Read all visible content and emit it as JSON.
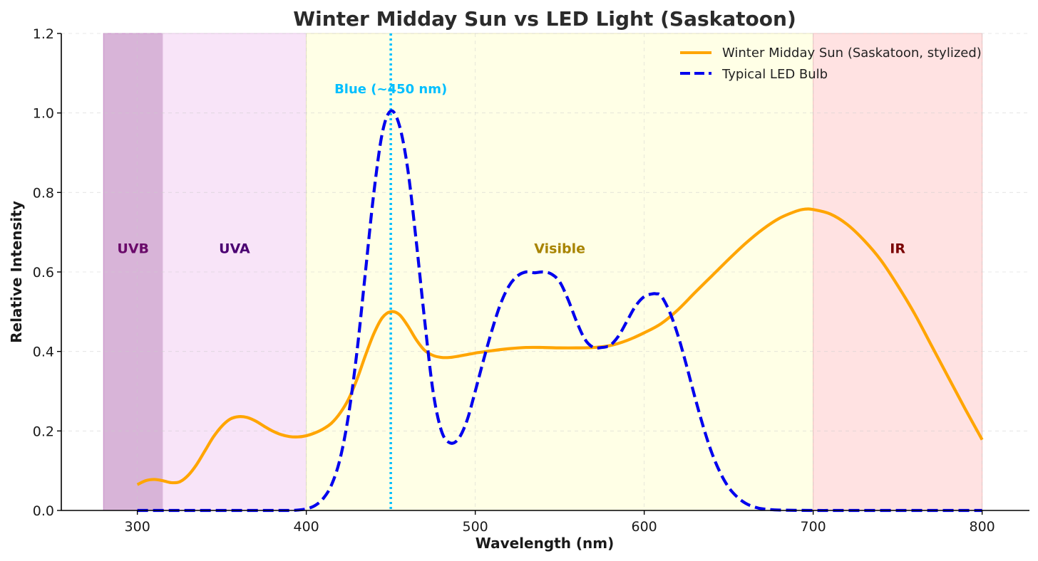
{
  "chart_data": {
    "type": "line",
    "title": "Winter Midday Sun vs LED Light (Saskatoon)",
    "xlabel": "Wavelength (nm)",
    "ylabel": "Relative Intensity",
    "xlim": [
      255,
      828
    ],
    "ylim": [
      0,
      1.2
    ],
    "xticks": [
      300,
      400,
      500,
      600,
      700,
      800
    ],
    "xtick_labels": [
      "300",
      "400",
      "500",
      "600",
      "700",
      "800"
    ],
    "yticks": [
      0,
      0.2,
      0.4,
      0.6,
      0.8,
      1.0,
      1.2
    ],
    "ytick_labels": [
      "0.0",
      "0.2",
      "0.4",
      "0.6",
      "0.8",
      "1.0",
      "1.2"
    ],
    "grid": true,
    "legend_position": "top-right",
    "series": [
      {
        "name": "Winter Midday Sun (Saskatoon, stylized)",
        "color": "#FFA500",
        "style": "solid",
        "x": [
          300,
          305,
          310,
          315,
          320,
          325,
          330,
          335,
          340,
          345,
          350,
          355,
          360,
          365,
          370,
          375,
          380,
          385,
          390,
          395,
          400,
          405,
          410,
          415,
          420,
          425,
          430,
          435,
          440,
          445,
          450,
          455,
          460,
          465,
          470,
          475,
          480,
          485,
          490,
          495,
          500,
          505,
          510,
          520,
          530,
          540,
          550,
          560,
          570,
          580,
          590,
          600,
          610,
          620,
          630,
          640,
          650,
          660,
          670,
          680,
          690,
          695,
          700,
          710,
          720,
          730,
          740,
          750,
          760,
          770,
          780,
          790,
          800
        ],
        "values": [
          0.065,
          0.075,
          0.078,
          0.075,
          0.07,
          0.072,
          0.088,
          0.115,
          0.15,
          0.185,
          0.212,
          0.23,
          0.236,
          0.234,
          0.225,
          0.212,
          0.2,
          0.191,
          0.186,
          0.185,
          0.188,
          0.195,
          0.205,
          0.22,
          0.245,
          0.28,
          0.33,
          0.39,
          0.445,
          0.485,
          0.5,
          0.493,
          0.465,
          0.43,
          0.403,
          0.39,
          0.385,
          0.385,
          0.388,
          0.392,
          0.396,
          0.399,
          0.402,
          0.407,
          0.41,
          0.41,
          0.409,
          0.409,
          0.41,
          0.415,
          0.428,
          0.447,
          0.47,
          0.505,
          0.548,
          0.59,
          0.632,
          0.672,
          0.707,
          0.735,
          0.753,
          0.758,
          0.757,
          0.746,
          0.72,
          0.68,
          0.63,
          0.566,
          0.495,
          0.415,
          0.335,
          0.255,
          0.178
        ]
      },
      {
        "name": "Typical LED Bulb",
        "color": "#0000EE",
        "style": "dashed",
        "x": [
          300,
          320,
          340,
          360,
          380,
          390,
          395,
          400,
          405,
          410,
          415,
          420,
          425,
          430,
          435,
          440,
          445,
          450,
          455,
          460,
          465,
          470,
          475,
          480,
          485,
          490,
          495,
          500,
          505,
          510,
          515,
          520,
          525,
          530,
          535,
          540,
          545,
          550,
          555,
          560,
          565,
          570,
          575,
          578,
          580,
          585,
          590,
          595,
          600,
          605,
          607,
          610,
          615,
          620,
          625,
          630,
          635,
          640,
          645,
          650,
          655,
          660,
          665,
          670,
          680,
          700,
          720,
          750,
          780,
          800
        ],
        "values": [
          0.0,
          0.0,
          0.0,
          0.0,
          0.0,
          0.0,
          0.001,
          0.004,
          0.012,
          0.03,
          0.065,
          0.13,
          0.24,
          0.4,
          0.6,
          0.8,
          0.95,
          1.005,
          0.97,
          0.86,
          0.68,
          0.48,
          0.3,
          0.2,
          0.17,
          0.18,
          0.225,
          0.3,
          0.38,
          0.455,
          0.52,
          0.565,
          0.59,
          0.6,
          0.598,
          0.6,
          0.595,
          0.575,
          0.53,
          0.475,
          0.43,
          0.41,
          0.41,
          0.412,
          0.415,
          0.44,
          0.478,
          0.515,
          0.538,
          0.545,
          0.545,
          0.54,
          0.5,
          0.44,
          0.365,
          0.285,
          0.21,
          0.145,
          0.095,
          0.058,
          0.034,
          0.018,
          0.009,
          0.004,
          0.001,
          0.0,
          0.0,
          0.0,
          0.0,
          0.0
        ]
      }
    ],
    "regions": [
      {
        "label": "UVB",
        "x_start": 280,
        "x_end": 315,
        "fill": "#D8B4D8",
        "edge": "#C98EC9",
        "text_color": "#6A0A6A",
        "label_y": 0.66
      },
      {
        "label": "UVA",
        "x_start": 315,
        "x_end": 400,
        "fill": "#F8E4F8",
        "edge": "#E6C8E6",
        "text_color": "#4B0072",
        "label_y": 0.66
      },
      {
        "label": "Visible",
        "x_start": 400,
        "x_end": 700,
        "fill": "#FFFFE6",
        "edge": "#E8E6C0",
        "text_color": "#A88400",
        "label_y": 0.66
      },
      {
        "label": "IR",
        "x_start": 700,
        "x_end": 800,
        "fill": "#FFE2E2",
        "edge": "#F0C0C0",
        "text_color": "#7A0000",
        "label_y": 0.66
      }
    ],
    "annotations": [
      {
        "text": "Blue (~450 nm)",
        "x": 450,
        "y": 1.06,
        "color": "#00BFFF",
        "vline_x": 450
      }
    ]
  }
}
